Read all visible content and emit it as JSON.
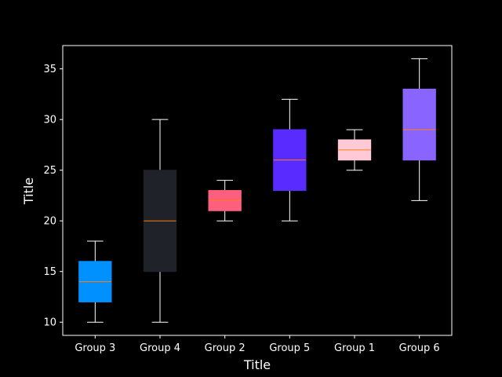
{
  "chart_data": {
    "type": "box",
    "title": "",
    "xlabel": "Title",
    "ylabel": "Title",
    "ylim": [
      8.7,
      37.3
    ],
    "yticks": [
      10,
      15,
      20,
      25,
      30,
      35
    ],
    "grid": false,
    "legend": "none",
    "categories": [
      "Group 3",
      "Group 4",
      "Group 2",
      "Group 5",
      "Group 1",
      "Group 6"
    ],
    "boxes": [
      {
        "label": "Group 3",
        "whisker_low": 10,
        "q1": 12,
        "median": 14,
        "q3": 16,
        "whisker_high": 18,
        "color": "#0091FF"
      },
      {
        "label": "Group 4",
        "whisker_low": 10,
        "q1": 15,
        "median": 20,
        "q3": 25,
        "whisker_high": 30,
        "color": "#1F2228"
      },
      {
        "label": "Group 2",
        "whisker_low": 20,
        "q1": 21,
        "median": 22,
        "q3": 23,
        "whisker_high": 24,
        "color": "#FF5F7F"
      },
      {
        "label": "Group 5",
        "whisker_low": 20,
        "q1": 23,
        "median": 26,
        "q3": 29,
        "whisker_high": 32,
        "color": "#5A2BFF"
      },
      {
        "label": "Group 1",
        "whisker_low": 25,
        "q1": 26,
        "median": 27,
        "q3": 28,
        "whisker_high": 29,
        "color": "#FFCAD6"
      },
      {
        "label": "Group 6",
        "whisker_low": 22,
        "q1": 26,
        "median": 29,
        "q3": 33,
        "whisker_high": 36,
        "color": "#8A64FF"
      }
    ],
    "colors": {
      "background": "#000000",
      "axes": "#ffffff",
      "median": "#FF7F0E",
      "whisker": "#ffffff"
    }
  }
}
